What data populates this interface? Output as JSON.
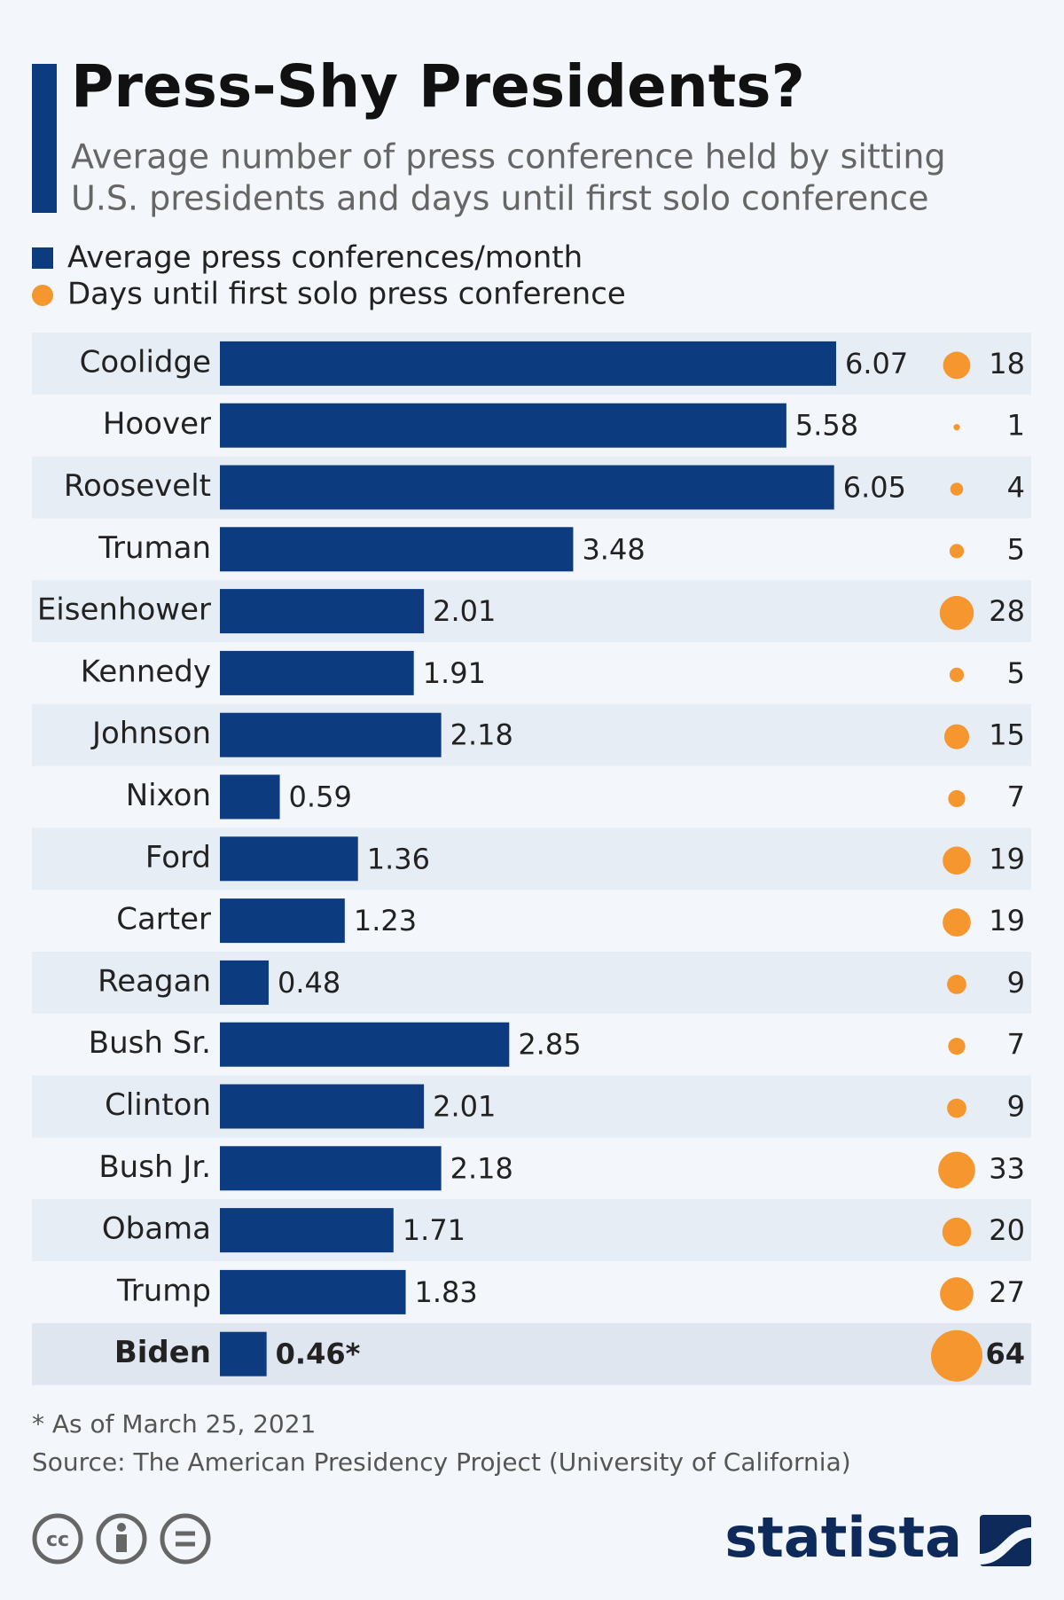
{
  "chart_data": {
    "type": "bar",
    "title": "Press-Shy Presidents?",
    "subtitle": [
      "Average number of press conference held by sitting",
      "U.S. presidents and days until first solo conference"
    ],
    "categories": [
      "Coolidge",
      "Hoover",
      "Roosevelt",
      "Truman",
      "Eisenhower",
      "Kennedy",
      "Johnson",
      "Nixon",
      "Ford",
      "Carter",
      "Reagan",
      "Bush Sr.",
      "Clinton",
      "Bush Jr.",
      "Obama",
      "Trump",
      "Biden"
    ],
    "highlight": "Biden",
    "series": [
      {
        "name": "Average press conferences/month",
        "color": "#0d3b80",
        "values": [
          6.07,
          5.58,
          6.05,
          3.48,
          2.01,
          1.91,
          2.18,
          0.59,
          1.36,
          1.23,
          0.48,
          2.85,
          2.01,
          2.18,
          1.71,
          1.83,
          0.46
        ],
        "value_labels": [
          "6.07",
          "5.58",
          "6.05",
          "3.48",
          "2.01",
          "1.91",
          "2.18",
          "0.59",
          "1.36",
          "1.23",
          "0.48",
          "2.85",
          "2.01",
          "2.18",
          "1.71",
          "1.83",
          "0.46*"
        ]
      },
      {
        "name": "Days until first solo press conference",
        "color": "#f5962f",
        "values": [
          18,
          1,
          4,
          5,
          28,
          5,
          15,
          7,
          19,
          19,
          9,
          7,
          9,
          33,
          20,
          27,
          64
        ]
      }
    ],
    "notes": [
      "* As of March 25, 2021",
      "Source: The American Presidency Project (University of California)"
    ]
  },
  "logo": "statista"
}
